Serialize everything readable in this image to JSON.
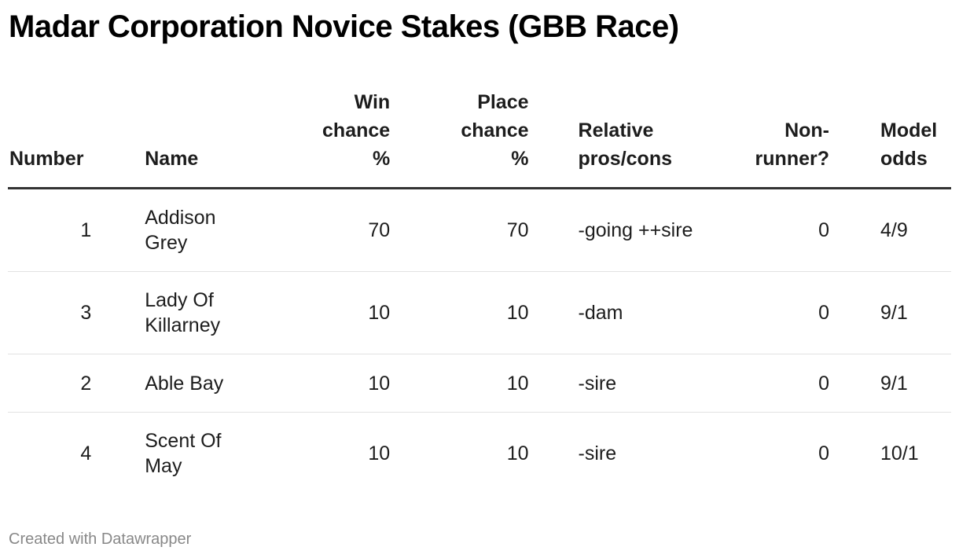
{
  "title": "Madar Corporation Novice Stakes (GBB Race)",
  "columns": [
    "Number",
    "Name",
    "Win chance %",
    "Place chance %",
    "Relative pros/cons",
    "Non-runner?",
    "Model odds"
  ],
  "rows": [
    [
      "1",
      "Addison Grey",
      "70",
      "70",
      "-going ++sire",
      "0",
      "4/9"
    ],
    [
      "3",
      "Lady Of Killarney",
      "10",
      "10",
      "-dam",
      "0",
      "9/1"
    ],
    [
      "2",
      "Able Bay",
      "10",
      "10",
      "-sire",
      "0",
      "9/1"
    ],
    [
      "4",
      "Scent Of May",
      "10",
      "10",
      "-sire",
      "0",
      "10/1"
    ]
  ],
  "footer": "Created with Datawrapper"
}
